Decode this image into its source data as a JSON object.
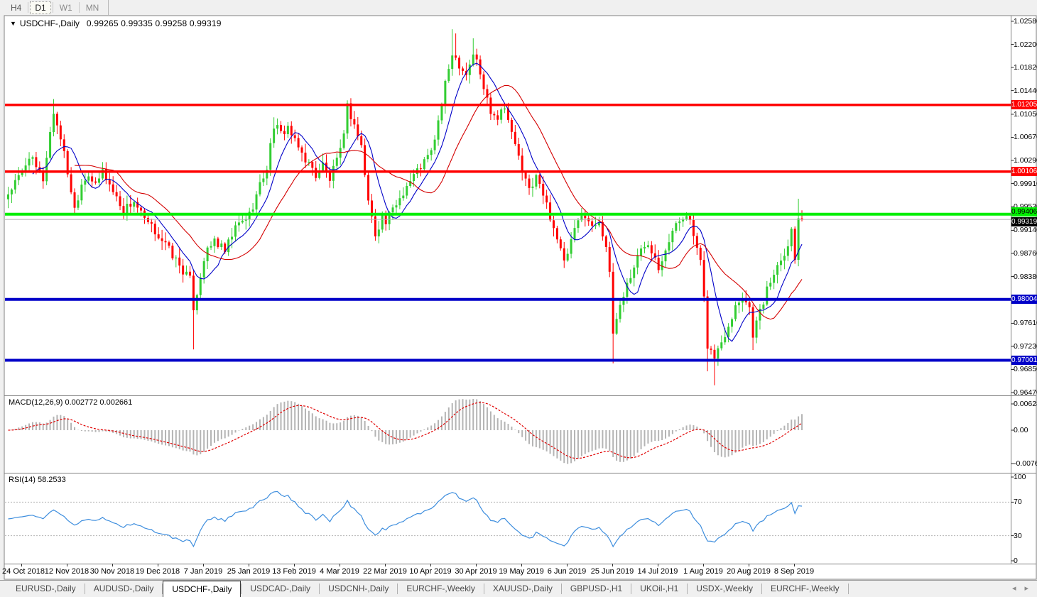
{
  "toolbar": {
    "periods": [
      {
        "label": "H4",
        "state": "normal"
      },
      {
        "label": "D1",
        "state": "active"
      },
      {
        "label": "W1",
        "state": "muted"
      },
      {
        "label": "MN",
        "state": "muted"
      }
    ]
  },
  "chart": {
    "title": {
      "dropdown_icon": "▼",
      "symbol": "USDCHF-,Daily",
      "ohlc_text": "0.99265 0.99335 0.99258 0.99319"
    },
    "macd_label": "MACD(12,26,9) 0.002772 0.002661",
    "rsi_label": "RSI(14) 58.2533"
  },
  "chart_data": {
    "type": "candlestick",
    "symbol": "USDCHF",
    "timeframe": "Daily",
    "current_candle": {
      "open": 0.99265,
      "high": 0.99335,
      "low": 0.99258,
      "close": 0.99319
    },
    "x_labels": [
      "24 Oct 2018",
      "12 Nov 2018",
      "30 Nov 2018",
      "19 Dec 2018",
      "7 Jan 2019",
      "25 Jan 2019",
      "13 Feb 2019",
      "4 Mar 2019",
      "22 Mar 2019",
      "10 Apr 2019",
      "30 Apr 2019",
      "19 May 2019",
      "6 Jun 2019",
      "25 Jun 2019",
      "14 Jul 2019",
      "1 Aug 2019",
      "20 Aug 2019",
      "8 Sep 2019"
    ],
    "price_ticks": [
      "1.02580",
      "1.02200",
      "1.01820",
      "1.01440",
      "1.01050",
      "1.00670",
      "1.00290",
      "0.99910",
      "0.99530",
      "0.99140",
      "0.98760",
      "0.98380",
      "0.97610",
      "0.97230",
      "0.96850",
      "0.96470"
    ],
    "price_range": {
      "top": 1.0258,
      "bottom": 0.9647
    },
    "levels": [
      {
        "label": "1.01205",
        "price": 1.01205,
        "color": "#ff0000",
        "width": 3.5,
        "role": "resistance"
      },
      {
        "label": "1.00106",
        "price": 1.00106,
        "color": "#ff0000",
        "width": 3.5,
        "role": "resistance"
      },
      {
        "label": "0.99406",
        "price": 0.99406,
        "color": "#00ee00",
        "width": 4,
        "role": "pivot"
      },
      {
        "label": "0.98004",
        "price": 0.98004,
        "color": "#0000c8",
        "width": 4,
        "role": "support"
      },
      {
        "label": "0.97001",
        "price": 0.97001,
        "color": "#0000c8",
        "width": 4,
        "role": "support"
      }
    ],
    "current_price": {
      "label": "0.99319",
      "price": 0.99319
    },
    "candle_colors": {
      "bull": "#32cd32",
      "bear": "#ff0000"
    },
    "moving_averages": [
      {
        "period": 8,
        "color": "#0000c8"
      },
      {
        "period": 20,
        "color": "#d40000"
      }
    ],
    "candles_count": 228,
    "close_waypoints": [
      [
        0,
        0.9975
      ],
      [
        2,
        0.9992
      ],
      [
        4,
        1.0008
      ],
      [
        6,
        1.0038
      ],
      [
        8,
        1.0015
      ],
      [
        10,
        0.9998
      ],
      [
        12,
        1.0075
      ],
      [
        13,
        1.0108
      ],
      [
        15,
        1.0068
      ],
      [
        17,
        1.001
      ],
      [
        19,
        0.995
      ],
      [
        21,
        0.9992
      ],
      [
        23,
        1.0008
      ],
      [
        25,
        0.9985
      ],
      [
        27,
        1.0012
      ],
      [
        30,
        0.9978
      ],
      [
        33,
        0.9948
      ],
      [
        36,
        0.9962
      ],
      [
        39,
        0.993
      ],
      [
        43,
        0.9906
      ],
      [
        46,
        0.9882
      ],
      [
        49,
        0.9856
      ],
      [
        52,
        0.9832
      ],
      [
        53,
        0.9788
      ],
      [
        54,
        0.9812
      ],
      [
        56,
        0.9868
      ],
      [
        59,
        0.9898
      ],
      [
        62,
        0.9878
      ],
      [
        65,
        0.9918
      ],
      [
        69,
        0.994
      ],
      [
        72,
        0.9988
      ],
      [
        74,
        1.0018
      ],
      [
        76,
        1.0088
      ],
      [
        78,
        1.0072
      ],
      [
        80,
        1.0085
      ],
      [
        82,
        1.0058
      ],
      [
        85,
        1.0032
      ],
      [
        88,
        1.0005
      ],
      [
        90,
        1.0022
      ],
      [
        92,
        0.9998
      ],
      [
        95,
        1.0042
      ],
      [
        97,
        1.0118
      ],
      [
        99,
        1.0088
      ],
      [
        101,
        1.0052
      ],
      [
        103,
        0.9962
      ],
      [
        105,
        0.9908
      ],
      [
        107,
        0.9938
      ],
      [
        108,
        0.9926
      ],
      [
        111,
        0.9958
      ],
      [
        114,
        0.9988
      ],
      [
        117,
        1.0012
      ],
      [
        121,
        1.0042
      ],
      [
        123,
        1.0092
      ],
      [
        125,
        1.0152
      ],
      [
        127,
        1.0208
      ],
      [
        129,
        1.0188
      ],
      [
        131,
        1.0172
      ],
      [
        133,
        1.0205
      ],
      [
        134,
        1.0192
      ],
      [
        136,
        1.0148
      ],
      [
        138,
        1.0112
      ],
      [
        140,
        1.0102
      ],
      [
        142,
        1.0122
      ],
      [
        144,
        1.0072
      ],
      [
        146,
        1.0038
      ],
      [
        147,
        1.0005
      ],
      [
        149,
        0.9982
      ],
      [
        151,
        1.0002
      ],
      [
        153,
        0.9972
      ],
      [
        155,
        0.9938
      ],
      [
        157,
        0.9902
      ],
      [
        159,
        0.9858
      ],
      [
        161,
        0.9895
      ],
      [
        163,
        0.9928
      ],
      [
        165,
        0.9942
      ],
      [
        167,
        0.9918
      ],
      [
        169,
        0.9932
      ],
      [
        171,
        0.9888
      ],
      [
        172,
        0.9838
      ],
      [
        173,
        0.9745
      ],
      [
        175,
        0.9792
      ],
      [
        177,
        0.9825
      ],
      [
        179,
        0.9855
      ],
      [
        181,
        0.9882
      ],
      [
        183,
        0.9896
      ],
      [
        185,
        0.9872
      ],
      [
        186,
        0.9855
      ],
      [
        188,
        0.9886
      ],
      [
        190,
        0.9912
      ],
      [
        192,
        0.993
      ],
      [
        194,
        0.9945
      ],
      [
        196,
        0.9905
      ],
      [
        198,
        0.9858
      ],
      [
        199,
        0.98
      ],
      [
        200,
        0.9725
      ],
      [
        202,
        0.9705
      ],
      [
        204,
        0.973
      ],
      [
        206,
        0.976
      ],
      [
        208,
        0.979
      ],
      [
        210,
        0.9808
      ],
      [
        212,
        0.9786
      ],
      [
        213,
        0.9745
      ],
      [
        215,
        0.978
      ],
      [
        217,
        0.9815
      ],
      [
        219,
        0.9845
      ],
      [
        221,
        0.987
      ],
      [
        223,
        0.989
      ],
      [
        224,
        0.9915
      ],
      [
        225,
        0.9868
      ],
      [
        226,
        0.994
      ],
      [
        227,
        0.99319
      ]
    ],
    "wick_overrides": {
      "13": {
        "h": 1.013
      },
      "53": {
        "l": 0.9718
      },
      "76": {
        "h": 1.01
      },
      "97": {
        "h": 1.0128
      },
      "127": {
        "h": 1.0245
      },
      "128": {
        "h": 1.0238
      },
      "133": {
        "h": 1.023
      },
      "159": {
        "l": 0.9852
      },
      "173": {
        "l": 0.9695
      },
      "200": {
        "l": 0.9682
      },
      "202": {
        "l": 0.9659
      },
      "213": {
        "l": 0.9717
      },
      "226": {
        "h": 0.9966
      }
    },
    "macd": {
      "name": "MACD",
      "params": "12,26,9",
      "main_value": "0.002772",
      "signal_value": "0.002661",
      "axis_labels": [
        "0.006286",
        "0.00",
        "-0.00762"
      ],
      "histogram_color": "#b4b4b4",
      "signal_color": "#e00000"
    },
    "rsi": {
      "name": "RSI",
      "params": "14",
      "value": "58.2533",
      "axis_labels": [
        "100",
        "70",
        "30",
        "0"
      ],
      "level_lines": [
        70,
        30
      ],
      "line_color": "#3e8ede"
    }
  },
  "tabs": {
    "items": [
      {
        "label": "EURUSD-,Daily"
      },
      {
        "label": "AUDUSD-,Daily"
      },
      {
        "label": "USDCHF-,Daily"
      },
      {
        "label": "USDCAD-,Daily"
      },
      {
        "label": "USDCNH-,Daily"
      },
      {
        "label": "EURCHF-,Weekly"
      },
      {
        "label": "XAUUSD-,Daily"
      },
      {
        "label": "GBPUSD-,H1"
      },
      {
        "label": "UKOil-,H1"
      },
      {
        "label": "USDX-,Weekly"
      },
      {
        "label": "EURCHF-,Weekly"
      }
    ],
    "active_index": 2,
    "scroll_left_icon": "◂",
    "scroll_right_icon": "▸"
  }
}
